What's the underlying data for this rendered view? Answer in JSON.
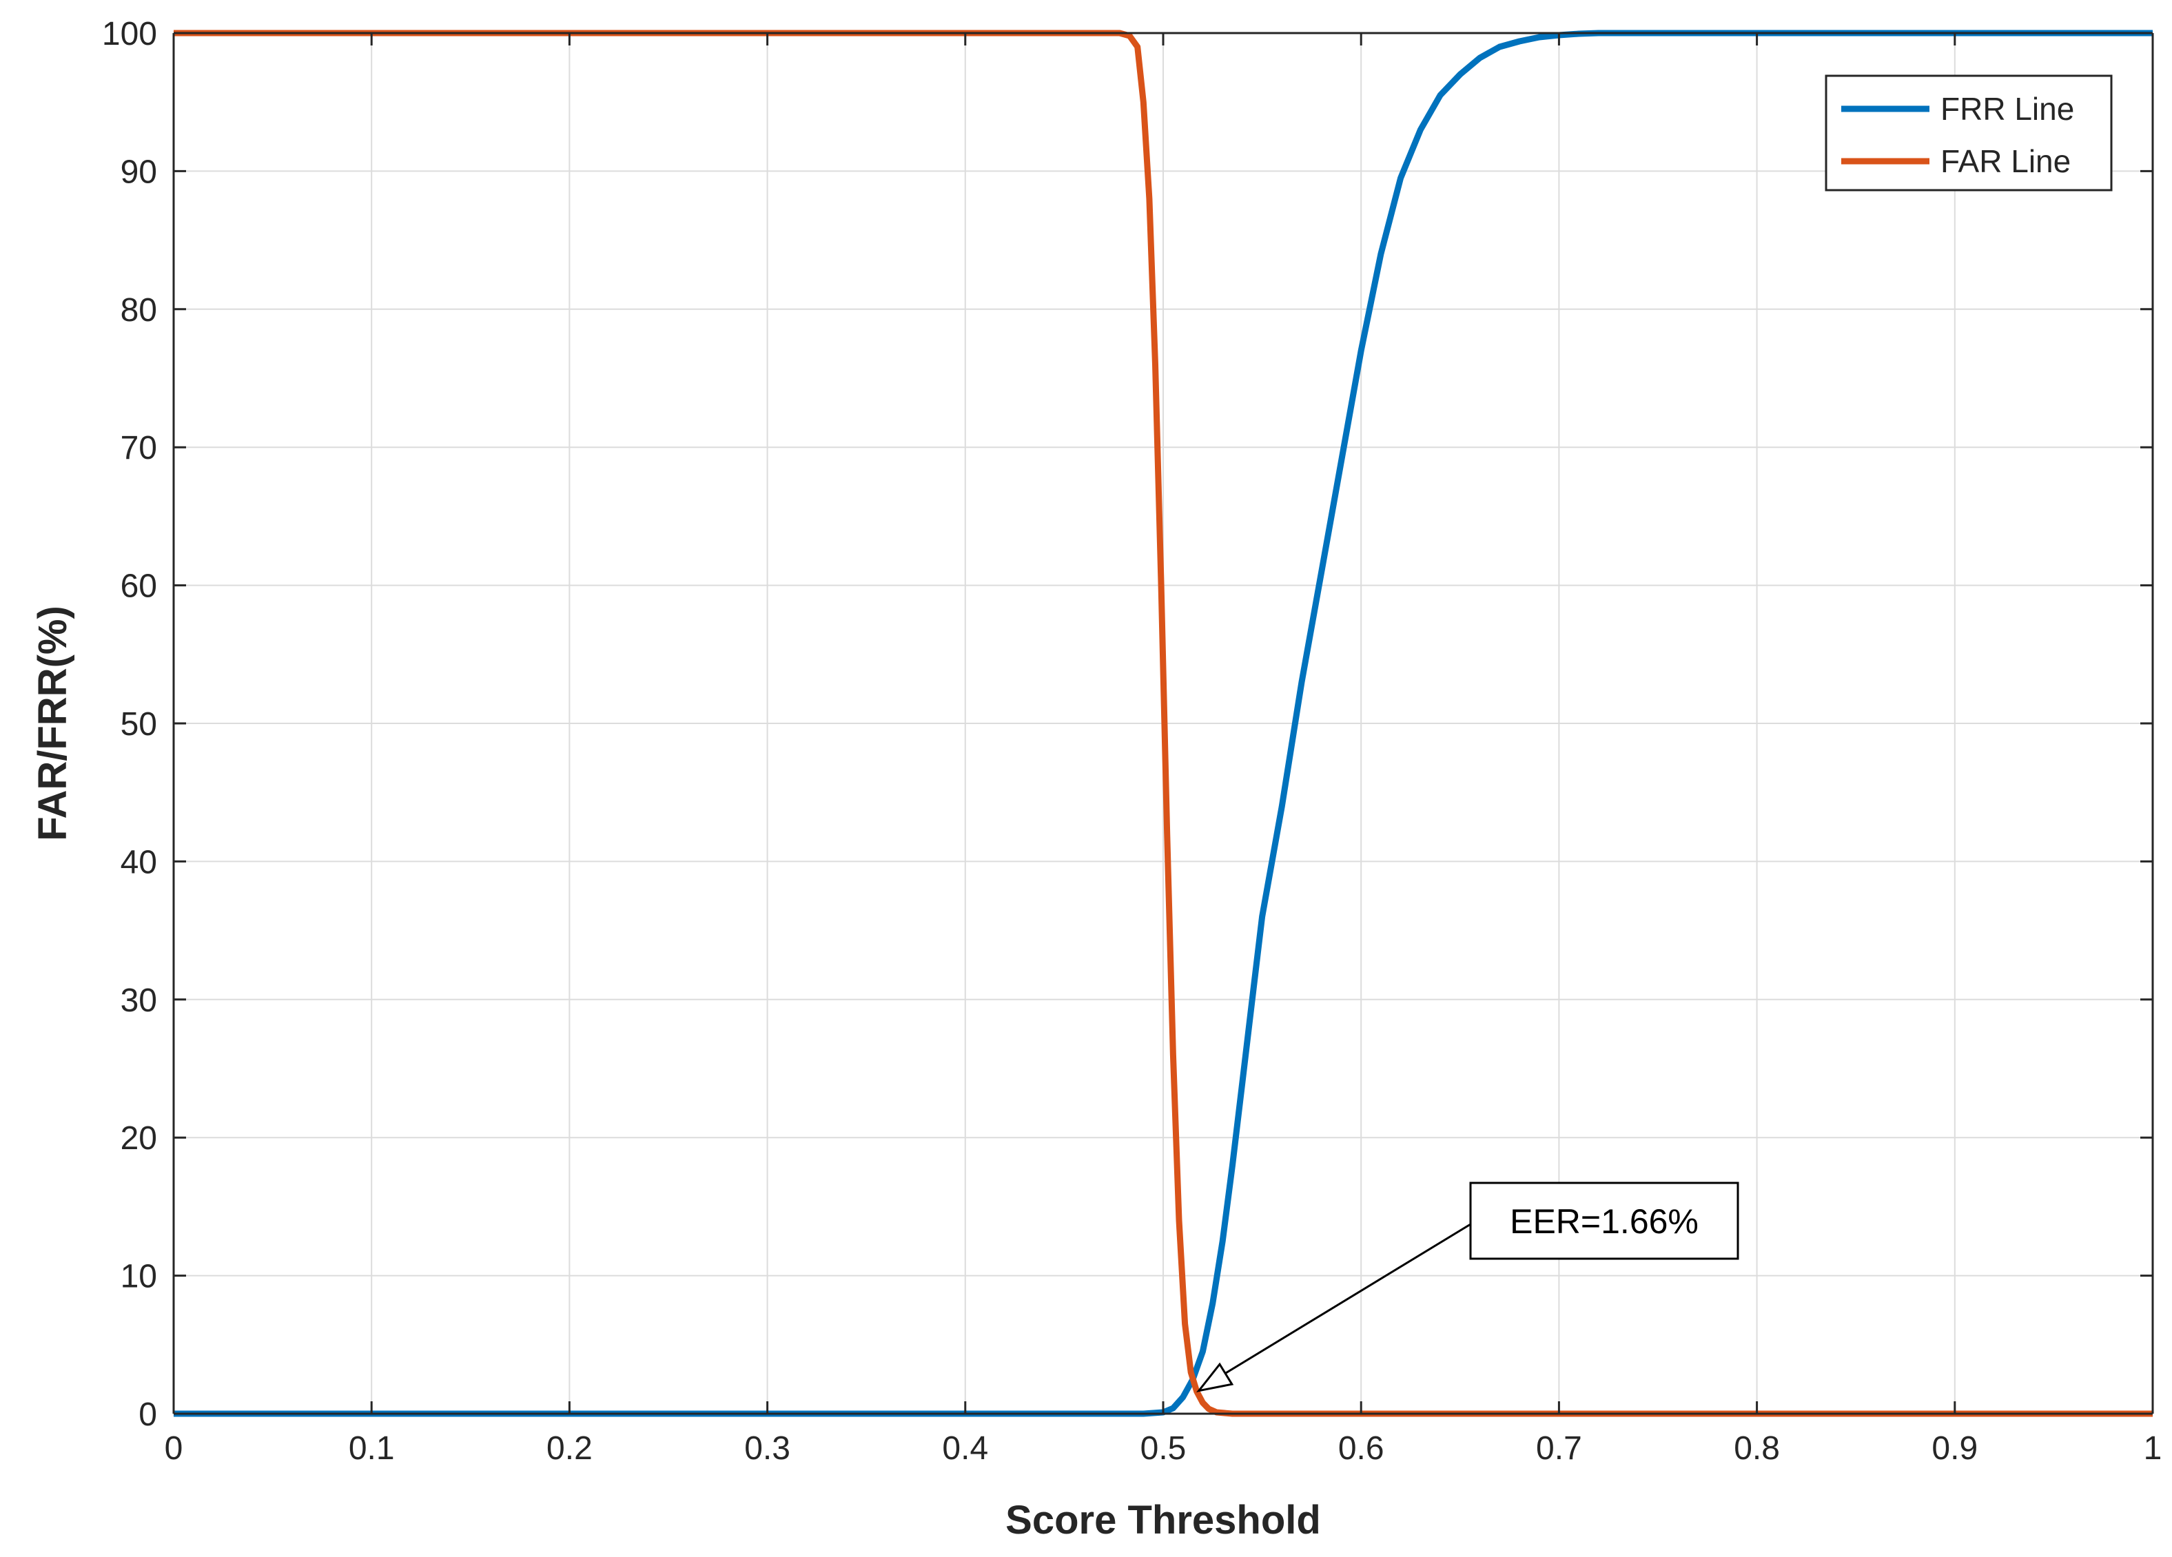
{
  "chart_data": {
    "type": "line",
    "xlabel": "Score Threshold",
    "ylabel": "FAR/FRR(%)",
    "xlim": [
      0,
      1
    ],
    "ylim": [
      0,
      100
    ],
    "x_ticks": [
      "0",
      "0.1",
      "0.2",
      "0.3",
      "0.4",
      "0.5",
      "0.6",
      "0.7",
      "0.8",
      "0.9",
      "1"
    ],
    "y_ticks": [
      "0",
      "10",
      "20",
      "30",
      "40",
      "50",
      "60",
      "70",
      "80",
      "90",
      "100"
    ],
    "grid": true,
    "legend_position": "top-right",
    "series": [
      {
        "name": "FRR Line",
        "color": "#0072bd",
        "x": [
          0,
          0.49,
          0.5,
          0.505,
          0.51,
          0.515,
          0.52,
          0.525,
          0.53,
          0.535,
          0.54,
          0.545,
          0.55,
          0.56,
          0.57,
          0.58,
          0.59,
          0.6,
          0.61,
          0.62,
          0.63,
          0.64,
          0.65,
          0.66,
          0.67,
          0.68,
          0.69,
          0.7,
          0.71,
          0.72,
          0.73,
          1
        ],
        "y": [
          0,
          0,
          0.1,
          0.4,
          1.2,
          2.5,
          4.5,
          8,
          12.5,
          18,
          24,
          30,
          36,
          44,
          53,
          61,
          69,
          77,
          84,
          89.5,
          93,
          95.5,
          97,
          98.2,
          99,
          99.4,
          99.7,
          99.85,
          99.95,
          100,
          100,
          100
        ]
      },
      {
        "name": "FAR Line",
        "color": "#d95319",
        "x": [
          0,
          0.47,
          0.478,
          0.483,
          0.487,
          0.49,
          0.493,
          0.496,
          0.499,
          0.502,
          0.505,
          0.508,
          0.511,
          0.514,
          0.517,
          0.52,
          0.523,
          0.527,
          0.535,
          0.55,
          1
        ],
        "y": [
          100,
          100,
          100,
          99.8,
          99,
          95,
          88,
          76,
          60,
          42,
          26,
          14,
          6.5,
          3,
          1.6,
          0.8,
          0.35,
          0.1,
          0,
          0,
          0
        ]
      }
    ],
    "annotation": {
      "text": "EER=1.66%",
      "x": 0.518,
      "y": 1.66
    }
  }
}
